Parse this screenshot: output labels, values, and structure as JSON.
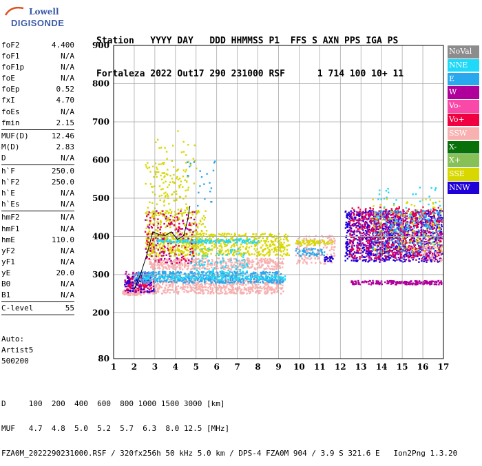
{
  "logo": {
    "line1": "Lowell",
    "line2": "DIGISONDE"
  },
  "header": {
    "line1": "Station   YYYY DAY   DDD HHMMSS P1  FFS S AXN PPS IGA PS",
    "line2": "Fortaleza 2022 Out17 290 231000 RSF      1 714 100 10+ 11"
  },
  "params": {
    "group1": [
      {
        "name": "foF2",
        "value": "4.400"
      },
      {
        "name": "foF1",
        "value": "N/A"
      },
      {
        "name": "foF1p",
        "value": "N/A"
      },
      {
        "name": "foE",
        "value": "N/A"
      },
      {
        "name": "foEp",
        "value": "0.52"
      },
      {
        "name": "fxI",
        "value": "4.70"
      },
      {
        "name": "foEs",
        "value": "N/A"
      },
      {
        "name": "fmin",
        "value": "2.15"
      }
    ],
    "group2": [
      {
        "name": "MUF(D)",
        "value": "12.46"
      },
      {
        "name": "M(D)",
        "value": "2.83"
      },
      {
        "name": "D",
        "value": "N/A"
      }
    ],
    "group3": [
      {
        "name": "h`F",
        "value": "250.0"
      },
      {
        "name": "h`F2",
        "value": "250.0"
      },
      {
        "name": "h`E",
        "value": "N/A"
      },
      {
        "name": "h`Es",
        "value": "N/A"
      }
    ],
    "group4": [
      {
        "name": "hmF2",
        "value": "N/A"
      },
      {
        "name": "hmF1",
        "value": "N/A"
      },
      {
        "name": "hmE",
        "value": "110.0"
      },
      {
        "name": "yF2",
        "value": "N/A"
      },
      {
        "name": "yF1",
        "value": "N/A"
      },
      {
        "name": "yE",
        "value": "20.0"
      },
      {
        "name": "B0",
        "value": "N/A"
      },
      {
        "name": "B1",
        "value": "N/A"
      }
    ],
    "group5": [
      {
        "name": "C-level",
        "value": "55"
      }
    ]
  },
  "auto": {
    "line1": "Auto:",
    "line2": "Artist5",
    "line3": "500200"
  },
  "legend": [
    {
      "label": "NoVal",
      "color": "#8c8c8c"
    },
    {
      "label": "NNE",
      "color": "#20d8f8"
    },
    {
      "label": "E",
      "color": "#2aa8ee"
    },
    {
      "label": "W",
      "color": "#b0009c"
    },
    {
      "label": "Vo-",
      "color": "#f848a8"
    },
    {
      "label": "Vo+",
      "color": "#f00040"
    },
    {
      "label": "SSW",
      "color": "#f8b0b0"
    },
    {
      "label": "X-",
      "color": "#087008"
    },
    {
      "label": "X+",
      "color": "#88c058"
    },
    {
      "label": "SSE",
      "color": "#d8d800"
    },
    {
      "label": "NNW",
      "color": "#2000d8"
    }
  ],
  "footer": {
    "line1": "D     100  200  400  600  800 1000 1500 3000 [km]",
    "line2": "MUF   4.7  4.8  5.0  5.2  5.7  6.3  8.0 12.5 [MHz]",
    "line3": "FZA0M_2022290231000.RSF / 320fx256h 50 kHz 5.0 km / DPS-4 FZA0M 904 / 3.9 S 321.6 E   Ion2Png 1.3.20"
  },
  "chart_data": {
    "type": "scatter",
    "title": "",
    "xlabel": "",
    "ylabel": "",
    "xlim": [
      1,
      17
    ],
    "ylim": [
      80,
      900
    ],
    "xticks": [
      1,
      2,
      3,
      4,
      5,
      6,
      7,
      8,
      9,
      10,
      11,
      12,
      13,
      14,
      15,
      16,
      17
    ],
    "yticks": [
      80,
      200,
      300,
      400,
      500,
      600,
      700,
      800,
      900
    ],
    "grid": true,
    "clusters": [
      {
        "x": [
          1.4,
          2.3
        ],
        "y": [
          248,
          262
        ],
        "color": "SSW",
        "n": 120
      },
      {
        "x": [
          1.6,
          9.2
        ],
        "y": [
          252,
          290
        ],
        "color": "SSW",
        "n": 700
      },
      {
        "x": [
          1.5,
          3.0
        ],
        "y": [
          255,
          310
        ],
        "color": "W",
        "n": 120
      },
      {
        "x": [
          1.6,
          2.8
        ],
        "y": [
          255,
          300
        ],
        "color": "Vo+",
        "n": 60
      },
      {
        "x": [
          1.5,
          3.0
        ],
        "y": [
          255,
          300
        ],
        "color": "NNW",
        "n": 60
      },
      {
        "x": [
          2.0,
          9.2
        ],
        "y": [
          280,
          310
        ],
        "color": "E",
        "n": 600
      },
      {
        "x": [
          2.0,
          9.3
        ],
        "y": [
          288,
          300
        ],
        "color": "NNE",
        "n": 150
      },
      {
        "x": [
          2.7,
          9.2
        ],
        "y": [
          315,
          345
        ],
        "color": "SSW",
        "n": 450
      },
      {
        "x": [
          2.6,
          9.5
        ],
        "y": [
          350,
          410
        ],
        "color": "SSE",
        "n": 650
      },
      {
        "x": [
          2.5,
          5.5
        ],
        "y": [
          360,
          470
        ],
        "color": "SSE",
        "n": 260
      },
      {
        "x": [
          2.5,
          5.0
        ],
        "y": [
          330,
          470
        ],
        "color": "Vo+",
        "n": 110
      },
      {
        "x": [
          2.5,
          5.0
        ],
        "y": [
          330,
          470
        ],
        "color": "W",
        "n": 90
      },
      {
        "x": [
          3.0,
          8.0
        ],
        "y": [
          385,
          395
        ],
        "color": "NNE",
        "n": 150
      },
      {
        "x": [
          4.7,
          7.5
        ],
        "y": [
          295,
          370
        ],
        "color": "NNE",
        "n": 110
      },
      {
        "x": [
          2.5,
          4.6
        ],
        "y": [
          440,
          600
        ],
        "color": "SSE",
        "n": 120
      },
      {
        "x": [
          3.0,
          5.0
        ],
        "y": [
          500,
          680
        ],
        "color": "SSE",
        "n": 35
      },
      {
        "x": [
          4.2,
          6.2
        ],
        "y": [
          480,
          600
        ],
        "color": "E",
        "n": 22
      },
      {
        "x": [
          9.8,
          11.7
        ],
        "y": [
          330,
          405
        ],
        "color": "SSW",
        "n": 150
      },
      {
        "x": [
          9.8,
          11.6
        ],
        "y": [
          378,
          392
        ],
        "color": "SSE",
        "n": 70
      },
      {
        "x": [
          9.8,
          11.2
        ],
        "y": [
          350,
          370
        ],
        "color": "E",
        "n": 55
      },
      {
        "x": [
          11.2,
          11.6
        ],
        "y": [
          335,
          350
        ],
        "color": "NNW",
        "n": 20
      },
      {
        "x": [
          12.2,
          16.9
        ],
        "y": [
          335,
          470
        ],
        "color": "NNW",
        "n": 900
      },
      {
        "x": [
          12.4,
          16.9
        ],
        "y": [
          340,
          470
        ],
        "color": "W",
        "n": 520
      },
      {
        "x": [
          12.4,
          16.9
        ],
        "y": [
          345,
          480
        ],
        "color": "Vo+",
        "n": 420
      },
      {
        "x": [
          13.5,
          16.9
        ],
        "y": [
          360,
          500
        ],
        "color": "SSE",
        "n": 150
      },
      {
        "x": [
          13.5,
          16.8
        ],
        "y": [
          355,
          470
        ],
        "color": "E",
        "n": 180
      },
      {
        "x": [
          16.0,
          16.9
        ],
        "y": [
          335,
          380
        ],
        "color": "SSW",
        "n": 40
      },
      {
        "x": [
          12.5,
          16.9
        ],
        "y": [
          276,
          286
        ],
        "color": "W",
        "n": 200
      },
      {
        "x": [
          13.5,
          16.9
        ],
        "y": [
          440,
          530
        ],
        "color": "NNE",
        "n": 40
      }
    ],
    "trace": {
      "x": [
        2.0,
        2.3,
        2.6,
        2.9,
        3.2,
        3.5,
        3.8,
        4.1,
        4.4,
        4.6,
        4.7
      ],
      "y": [
        262,
        300,
        350,
        412,
        405,
        402,
        412,
        392,
        402,
        445,
        480
      ]
    }
  }
}
